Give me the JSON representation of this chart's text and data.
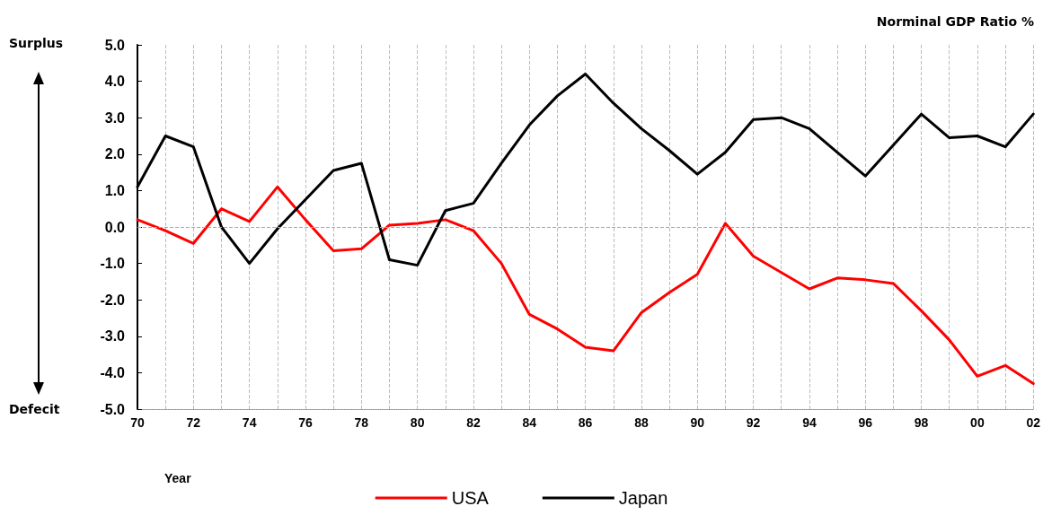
{
  "chart_data": {
    "type": "line",
    "ylabel": "Norminal GDP Ratio %",
    "xlabel": "Year",
    "annotations": [
      "Surplus",
      "Defecit"
    ],
    "categories": [
      "70",
      null,
      "72",
      null,
      "74",
      null,
      "76",
      null,
      "78",
      null,
      "80",
      null,
      "82",
      null,
      "84",
      null,
      "86",
      null,
      "88",
      null,
      "90",
      null,
      "92",
      null,
      "94",
      null,
      "96",
      null,
      "98",
      null,
      "00",
      null,
      "02"
    ],
    "series": [
      {
        "name": "USA",
        "color": "#ff0000",
        "values": [
          0.2,
          -0.1,
          -0.45,
          0.5,
          0.15,
          1.1,
          0.2,
          -0.65,
          -0.6,
          0.05,
          0.1,
          0.2,
          -0.1,
          -1.0,
          -2.4,
          -2.8,
          -3.3,
          -3.4,
          -2.35,
          -1.8,
          -1.3,
          0.1,
          -0.8,
          -1.25,
          -1.7,
          -1.4,
          -1.45,
          -1.55,
          -2.3,
          -3.1,
          -4.1,
          -3.8,
          -4.3
        ]
      },
      {
        "name": "Japan",
        "color": "#000000",
        "values": [
          1.1,
          2.5,
          2.2,
          0.0,
          -1.0,
          -0.05,
          0.75,
          1.55,
          1.75,
          -0.9,
          -1.05,
          0.45,
          0.65,
          1.75,
          2.8,
          3.6,
          4.2,
          3.4,
          2.7,
          2.1,
          1.45,
          2.05,
          2.95,
          3.0,
          2.7,
          2.05,
          1.4,
          2.25,
          3.1,
          2.45,
          2.5,
          2.2,
          3.1
        ]
      }
    ],
    "ylim": [
      -5,
      5
    ],
    "yticks": [
      {
        "value": -5,
        "label": "-5.0"
      },
      {
        "value": -4,
        "label": "-4.0"
      },
      {
        "value": -3,
        "label": "-3.0"
      },
      {
        "value": -2,
        "label": "-2.0"
      },
      {
        "value": -1,
        "label": "-1.0"
      },
      {
        "value": 0,
        "label": "0.0"
      },
      {
        "value": 1,
        "label": "1.0"
      },
      {
        "value": 2,
        "label": "2.0"
      },
      {
        "value": 3,
        "label": "3.0"
      },
      {
        "value": 4,
        "label": "4.0"
      },
      {
        "value": 5,
        "label": "5.0"
      }
    ],
    "ref_lines": [
      {
        "axis": "y",
        "value": 0,
        "color": "#aaaaaa",
        "line_style": "dashed"
      }
    ],
    "grid": "x",
    "legend": "bottom",
    "marker": "none",
    "line_style": "solid"
  }
}
